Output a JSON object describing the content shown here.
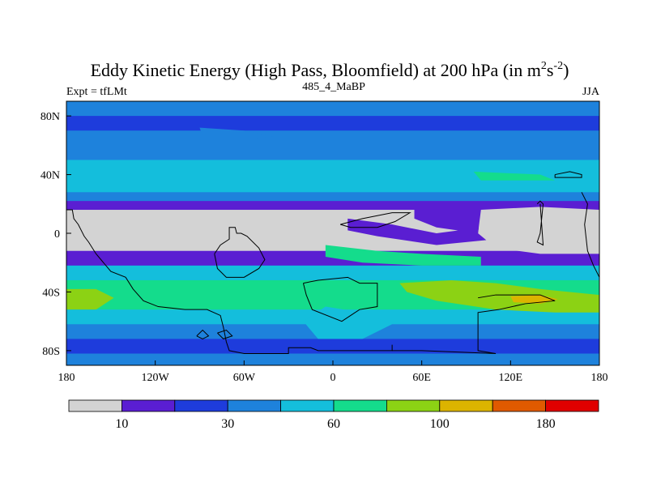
{
  "chart_data": {
    "type": "heatmap",
    "title_main": "Eddy Kinetic Energy (High Pass, Bloomfield) at 200 hPa (in m",
    "title_sup1": "2",
    "title_mid": "s",
    "title_sup2": "-2",
    "title_end": ")",
    "subtitle_left": "Expt = tfLMt",
    "subtitle_center": "485_4_MaBP",
    "subtitle_right": "JJA",
    "x_ticks": [
      {
        "value": -180,
        "label": "180"
      },
      {
        "value": -120,
        "label": "120W"
      },
      {
        "value": -60,
        "label": "60W"
      },
      {
        "value": 0,
        "label": "0"
      },
      {
        "value": 60,
        "label": "60E"
      },
      {
        "value": 120,
        "label": "120E"
      },
      {
        "value": 180,
        "label": "180"
      }
    ],
    "y_ticks": [
      {
        "value": 80,
        "label": "80N"
      },
      {
        "value": 40,
        "label": "40N"
      },
      {
        "value": 0,
        "label": "0"
      },
      {
        "value": -40,
        "label": "40S"
      },
      {
        "value": -80,
        "label": "80S"
      }
    ],
    "xlim": [
      -180,
      180
    ],
    "ylim": [
      -90,
      90
    ],
    "levels": [
      10,
      20,
      30,
      45,
      60,
      80,
      100,
      140,
      180
    ],
    "colorbar_colors": [
      "#d3d3d3",
      "#5a1ed2",
      "#1e3cdc",
      "#1e82dc",
      "#14bedc",
      "#14dc8c",
      "#8cd214",
      "#dcb400",
      "#e05a00",
      "#e00000"
    ],
    "colorbar_labels": [
      {
        "boundary": 1,
        "label": "10"
      },
      {
        "boundary": 3,
        "label": "30"
      },
      {
        "boundary": 5,
        "label": "60"
      },
      {
        "boundary": 7,
        "label": "100"
      },
      {
        "boundary": 9,
        "label": "180"
      }
    ],
    "bands": [
      {
        "lat_top": 90,
        "lat_bottom": 80,
        "level": 3
      },
      {
        "lat_top": 80,
        "lat_bottom": 70,
        "level": 2
      },
      {
        "lat_top": 70,
        "lat_bottom": 62,
        "level": 3
      },
      {
        "lat_top": 62,
        "lat_bottom": 50,
        "level": 3
      },
      {
        "lat_top": 50,
        "lat_bottom": 28,
        "level": 4
      },
      {
        "lat_top": 28,
        "lat_bottom": 22,
        "level": 3
      },
      {
        "lat_top": 22,
        "lat_bottom": 16,
        "level": 1
      },
      {
        "lat_top": 16,
        "lat_bottom": -12,
        "level": 0
      },
      {
        "lat_top": -12,
        "lat_bottom": -22,
        "level": 1
      },
      {
        "lat_top": -22,
        "lat_bottom": -32,
        "level": 4
      },
      {
        "lat_top": -32,
        "lat_bottom": -52,
        "level": 5
      },
      {
        "lat_top": -52,
        "lat_bottom": -62,
        "level": 4
      },
      {
        "lat_top": -62,
        "lat_bottom": -72,
        "level": 3
      },
      {
        "lat_top": -72,
        "lat_bottom": -82,
        "level": 2
      },
      {
        "lat_top": -82,
        "lat_bottom": -90,
        "level": 3
      }
    ],
    "patches": [
      {
        "level": 6,
        "points": [
          [
            -180,
            -38
          ],
          [
            -160,
            -38
          ],
          [
            -148,
            -44
          ],
          [
            -160,
            -52
          ],
          [
            -180,
            -52
          ]
        ]
      },
      {
        "level": 6,
        "points": [
          [
            45,
            -34
          ],
          [
            80,
            -32
          ],
          [
            110,
            -34
          ],
          [
            140,
            -38
          ],
          [
            160,
            -40
          ],
          [
            180,
            -42
          ],
          [
            180,
            -54
          ],
          [
            150,
            -54
          ],
          [
            110,
            -52
          ],
          [
            70,
            -46
          ],
          [
            50,
            -40
          ]
        ]
      },
      {
        "level": 7,
        "points": [
          [
            120,
            -43
          ],
          [
            140,
            -42
          ],
          [
            152,
            -45
          ],
          [
            140,
            -48
          ],
          [
            122,
            -47
          ]
        ]
      },
      {
        "level": 5,
        "points": [
          [
            -5,
            -8
          ],
          [
            30,
            -12
          ],
          [
            60,
            -14
          ],
          [
            100,
            -16
          ],
          [
            100,
            -22
          ],
          [
            60,
            -22
          ],
          [
            20,
            -20
          ],
          [
            -5,
            -16
          ]
        ]
      },
      {
        "level": 4,
        "points": [
          [
            -5,
            -50
          ],
          [
            20,
            -54
          ],
          [
            40,
            -62
          ],
          [
            20,
            -72
          ],
          [
            -10,
            -72
          ],
          [
            -20,
            -60
          ]
        ]
      },
      {
        "level": 5,
        "points": [
          [
            95,
            42
          ],
          [
            140,
            40
          ],
          [
            150,
            36
          ],
          [
            100,
            36
          ]
        ]
      },
      {
        "level": 1,
        "points": [
          [
            10,
            10
          ],
          [
            40,
            6
          ],
          [
            70,
            0
          ],
          [
            100,
            4
          ],
          [
            110,
            10
          ],
          [
            110,
            -4
          ],
          [
            70,
            -8
          ],
          [
            30,
            -2
          ],
          [
            10,
            2
          ]
        ]
      },
      {
        "level": 0,
        "points": [
          [
            100,
            16
          ],
          [
            140,
            18
          ],
          [
            180,
            16
          ],
          [
            180,
            -14
          ],
          [
            140,
            -14
          ],
          [
            110,
            -10
          ],
          [
            98,
            0
          ]
        ]
      },
      {
        "level": 1,
        "points": [
          [
            55,
            16
          ],
          [
            100,
            16
          ],
          [
            98,
            0
          ],
          [
            70,
            4
          ],
          [
            55,
            10
          ]
        ]
      },
      {
        "level": 3,
        "points": [
          [
            -90,
            72
          ],
          [
            -60,
            70
          ],
          [
            -40,
            66
          ],
          [
            -60,
            64
          ],
          [
            -88,
            66
          ]
        ]
      }
    ],
    "coastlines": [
      [
        [
          -180,
          16
        ],
        [
          -176,
          16
        ],
        [
          -175,
          10
        ],
        [
          -172,
          6
        ],
        [
          -168,
          -2
        ],
        [
          -165,
          -6
        ],
        [
          -160,
          -14
        ],
        [
          -150,
          -26
        ],
        [
          -140,
          -30
        ],
        [
          -135,
          -38
        ],
        [
          -128,
          -46
        ],
        [
          -118,
          -50
        ],
        [
          -100,
          -52
        ],
        [
          -85,
          -52
        ],
        [
          -76,
          -56
        ],
        [
          -74,
          -64
        ],
        [
          -72,
          -74
        ],
        [
          -70,
          -80
        ],
        [
          -60,
          -82
        ],
        [
          -30,
          -82
        ],
        [
          -30,
          -78
        ],
        [
          -15,
          -78
        ],
        [
          -10,
          -80
        ],
        [
          20,
          -80
        ],
        [
          40,
          -80
        ],
        [
          40,
          -76
        ]
      ],
      [
        [
          -80,
          -14
        ],
        [
          -78,
          -24
        ],
        [
          -72,
          -30
        ],
        [
          -60,
          -30
        ],
        [
          -50,
          -24
        ],
        [
          -46,
          -18
        ],
        [
          -50,
          -10
        ],
        [
          -58,
          -2
        ],
        [
          -62,
          0
        ],
        [
          -65,
          0
        ],
        [
          -66,
          4
        ],
        [
          -70,
          4
        ],
        [
          -70,
          -4
        ],
        [
          -76,
          -8
        ],
        [
          -80,
          -14
        ]
      ],
      [
        [
          -20,
          -34
        ],
        [
          -10,
          -32
        ],
        [
          10,
          -30
        ],
        [
          18,
          -34
        ],
        [
          30,
          -34
        ],
        [
          30,
          -50
        ],
        [
          18,
          -52
        ],
        [
          12,
          -56
        ],
        [
          6,
          -60
        ],
        [
          -14,
          -52
        ],
        [
          -18,
          -42
        ],
        [
          -20,
          -34
        ]
      ],
      [
        [
          5,
          6
        ],
        [
          20,
          10
        ],
        [
          40,
          14
        ],
        [
          52,
          14
        ],
        [
          42,
          8
        ],
        [
          30,
          4
        ],
        [
          12,
          4
        ],
        [
          5,
          6
        ]
      ],
      [
        [
          98,
          -44
        ],
        [
          110,
          -42
        ],
        [
          126,
          -42
        ],
        [
          140,
          -42
        ],
        [
          150,
          -46
        ],
        [
          130,
          -48
        ],
        [
          112,
          -52
        ],
        [
          98,
          -54
        ],
        [
          98,
          -80
        ],
        [
          110,
          -82
        ],
        [
          60,
          -80
        ],
        [
          40,
          -80
        ]
      ],
      [
        [
          138,
          20
        ],
        [
          140,
          22
        ],
        [
          142,
          20
        ],
        [
          140,
          0
        ],
        [
          138,
          -6
        ],
        [
          142,
          -8
        ],
        [
          140,
          20
        ]
      ],
      [
        [
          150,
          40
        ],
        [
          160,
          42
        ],
        [
          168,
          40
        ],
        [
          168,
          38
        ],
        [
          150,
          38
        ],
        [
          150,
          40
        ]
      ],
      [
        [
          168,
          28
        ],
        [
          172,
          20
        ],
        [
          170,
          6
        ],
        [
          172,
          -12
        ],
        [
          176,
          -22
        ],
        [
          180,
          -30
        ]
      ],
      [
        [
          -92,
          -70
        ],
        [
          -88,
          -66
        ],
        [
          -84,
          -70
        ],
        [
          -88,
          -72
        ],
        [
          -92,
          -70
        ]
      ],
      [
        [
          -78,
          -68
        ],
        [
          -72,
          -66
        ],
        [
          -68,
          -70
        ],
        [
          -74,
          -72
        ],
        [
          -78,
          -68
        ]
      ]
    ]
  }
}
